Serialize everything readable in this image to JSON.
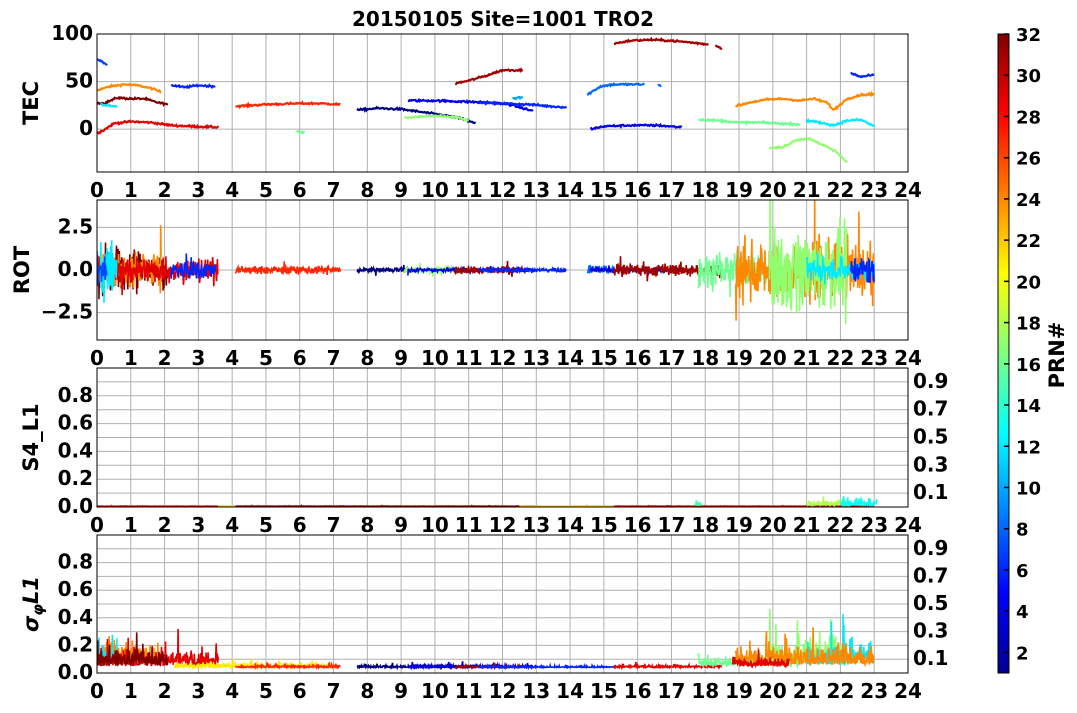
{
  "chart_data": {
    "type": "line",
    "title": "20150105 Site=1001 TRO2",
    "colorbar": {
      "label": "PRN#",
      "range": [
        1,
        32
      ],
      "ticks": [
        "2",
        "4",
        "6",
        "8",
        "10",
        "12",
        "14",
        "16",
        "18",
        "20",
        "22",
        "24",
        "26",
        "28",
        "30",
        "32"
      ],
      "colormap": "jet"
    },
    "xlim": [
      0,
      24
    ],
    "xticks": [
      "0",
      "1",
      "2",
      "3",
      "4",
      "5",
      "6",
      "7",
      "8",
      "9",
      "10",
      "11",
      "12",
      "13",
      "14",
      "15",
      "16",
      "17",
      "18",
      "19",
      "20",
      "21",
      "22",
      "23",
      "24"
    ],
    "grid": true,
    "panels": [
      {
        "ylabel": "TEC",
        "ylim": [
          -45,
          100
        ],
        "yticks": [
          {
            "v": 0,
            "label": "0"
          },
          {
            "v": 50,
            "label": "50"
          },
          {
            "v": 100,
            "label": "100"
          }
        ],
        "segments": [
          {
            "prn": 7,
            "x": [
              0,
              0.15,
              0.3
            ],
            "y": [
              73,
              71,
              67
            ]
          },
          {
            "prn": 24,
            "x": [
              0,
              0.4,
              0.8,
              1.2,
              1.6,
              1.9
            ],
            "y": [
              41,
              45,
              47,
              46,
              43,
              39
            ]
          },
          {
            "prn": 32,
            "x": [
              0,
              0.2,
              0.6,
              1.0,
              1.4,
              1.8,
              2.1
            ],
            "y": [
              28,
              27,
              33,
              32,
              32,
              28,
              26
            ]
          },
          {
            "prn": 12,
            "x": [
              0.1,
              0.35,
              0.6
            ],
            "y": [
              26,
              25,
              24
            ]
          },
          {
            "prn": 29,
            "x": [
              0,
              0.2,
              0.5,
              1.0,
              1.6,
              2.2,
              2.8,
              3.6
            ],
            "y": [
              -4,
              -1,
              6,
              8,
              7,
              4,
              3,
              2
            ]
          },
          {
            "prn": 6,
            "x": [
              2.2,
              2.6,
              3.0,
              3.5
            ],
            "y": [
              46,
              44,
              46,
              45
            ]
          },
          {
            "prn": 27,
            "x": [
              4.1,
              5.0,
              6.0,
              6.6,
              7.2
            ],
            "y": [
              24,
              26,
              27,
              27,
              26
            ]
          },
          {
            "prn": 16,
            "x": [
              5.9,
              6.15
            ],
            "y": [
              -3,
              -3
            ]
          },
          {
            "prn": 1,
            "x": [
              7.7,
              8.3,
              9.0,
              9.6,
              10.2,
              10.8,
              11.2
            ],
            "y": [
              20,
              22,
              21,
              18,
              15,
              11,
              6
            ]
          },
          {
            "prn": 17,
            "x": [
              9.1,
              9.6,
              10.2,
              10.7,
              11.0
            ],
            "y": [
              12,
              13,
              14,
              12,
              9
            ]
          },
          {
            "prn": 4,
            "x": [
              9.2,
              10.0,
              10.8,
              11.6,
              12.2,
              12.9
            ],
            "y": [
              30,
              30,
              29,
              28,
              26,
              19
            ]
          },
          {
            "prn": 31,
            "x": [
              10.6,
              11.0,
              11.5,
              12.0,
              12.6
            ],
            "y": [
              48,
              51,
              56,
              62,
              62
            ]
          },
          {
            "prn": 10,
            "x": [
              12.3,
              12.6
            ],
            "y": [
              33,
              33
            ]
          },
          {
            "prn": 6,
            "x": [
              11.3,
              12.0,
              12.8,
              13.4,
              13.9
            ],
            "y": [
              28,
              27,
              26,
              24,
              23
            ]
          },
          {
            "prn": 8,
            "x": [
              14.5,
              14.9,
              15.3,
              16.2
            ],
            "y": [
              36,
              45,
              47,
              47
            ]
          },
          {
            "prn": 8,
            "x": [
              16.6,
              16.7
            ],
            "y": [
              46,
              46
            ]
          },
          {
            "prn": 4,
            "x": [
              14.6,
              15.0,
              15.8,
              16.6,
              17.3
            ],
            "y": [
              0,
              3,
              4,
              4,
              2
            ]
          },
          {
            "prn": 31,
            "x": [
              15.3,
              15.8,
              16.4,
              17.0,
              17.6,
              18.1
            ],
            "y": [
              90,
              93,
              94,
              93,
              91,
              89
            ]
          },
          {
            "prn": 31,
            "x": [
              18.3,
              18.5
            ],
            "y": [
              88,
              85
            ]
          },
          {
            "prn": 16,
            "x": [
              17.8,
              18.4,
              19.0,
              19.6,
              20.2,
              20.8
            ],
            "y": [
              10,
              9,
              7,
              7,
              6,
              5
            ]
          },
          {
            "prn": 24,
            "x": [
              18.9,
              19.3,
              19.8,
              20.3,
              20.8,
              21.2,
              21.6,
              21.8,
              22.2,
              22.6,
              23.0
            ],
            "y": [
              24,
              28,
              31,
              32,
              30,
              32,
              28,
              20,
              32,
              36,
              37
            ]
          },
          {
            "prn": 17,
            "x": [
              19.9,
              20.3,
              20.7,
              21.1,
              21.5,
              21.9,
              22.2
            ],
            "y": [
              -20,
              -19,
              -11,
              -10,
              -17,
              -24,
              -35
            ]
          },
          {
            "prn": 12,
            "x": [
              21.0,
              21.4,
              21.8,
              22.2,
              22.6,
              23.0
            ],
            "y": [
              9,
              7,
              4,
              9,
              10,
              3
            ]
          },
          {
            "prn": 6,
            "x": [
              22.3,
              22.6,
              23.0
            ],
            "y": [
              59,
              55,
              57
            ]
          }
        ]
      },
      {
        "ylabel": "ROT",
        "ylim": [
          -4.1,
          4.1
        ],
        "yticks": [
          {
            "v": -2.5,
            "label": "−2.5"
          },
          {
            "v": 0,
            "label": "0.0"
          },
          {
            "v": 2.5,
            "label": "2.5"
          }
        ],
        "noise_segments": [
          {
            "prn": 32,
            "start": 0,
            "end": 2.1,
            "amp": 1.1
          },
          {
            "prn": 24,
            "start": 0,
            "end": 1.9,
            "amp": 0.9
          },
          {
            "prn": 29,
            "start": 0,
            "end": 3.6,
            "amp": 0.6
          },
          {
            "prn": 12,
            "start": 0.1,
            "end": 0.6,
            "amp": 1.4
          },
          {
            "prn": 7,
            "start": 0,
            "end": 0.3,
            "amp": 0.8
          },
          {
            "prn": 6,
            "start": 2.2,
            "end": 3.5,
            "amp": 0.45
          },
          {
            "prn": 27,
            "start": 4.1,
            "end": 7.2,
            "amp": 0.18
          },
          {
            "prn": 1,
            "start": 7.7,
            "end": 9.2,
            "amp": 0.1
          },
          {
            "prn": 17,
            "start": 9.1,
            "end": 11.0,
            "amp": 0.15
          },
          {
            "prn": 4,
            "start": 9.2,
            "end": 12.9,
            "amp": 0.1
          },
          {
            "prn": 31,
            "start": 10.6,
            "end": 12.6,
            "amp": 0.2
          },
          {
            "prn": 6,
            "start": 11.3,
            "end": 13.9,
            "amp": 0.08
          },
          {
            "prn": 8,
            "start": 14.5,
            "end": 15.3,
            "amp": 0.25
          },
          {
            "prn": 4,
            "start": 14.6,
            "end": 17.3,
            "amp": 0.08
          },
          {
            "prn": 31,
            "start": 15.3,
            "end": 18.5,
            "amp": 0.3
          },
          {
            "prn": 16,
            "start": 17.8,
            "end": 20.8,
            "amp": 0.8
          },
          {
            "prn": 24,
            "start": 18.9,
            "end": 23.0,
            "amp": 1.3
          },
          {
            "prn": 17,
            "start": 19.9,
            "end": 22.2,
            "amp": 1.9
          },
          {
            "prn": 12,
            "start": 21.0,
            "end": 23.0,
            "amp": 0.5
          },
          {
            "prn": 6,
            "start": 22.3,
            "end": 23.0,
            "amp": 0.7
          }
        ]
      },
      {
        "ylabel": "S4_L1",
        "ylim": [
          0,
          1
        ],
        "yticks": [
          {
            "v": 0,
            "label": "0.0"
          },
          {
            "v": 0.1,
            "label": "0.1"
          },
          {
            "v": 0.2,
            "label": "0.2"
          },
          {
            "v": 0.3,
            "label": "0.3"
          },
          {
            "v": 0.4,
            "label": "0.4"
          },
          {
            "v": 0.5,
            "label": "0.5"
          },
          {
            "v": 0.6,
            "label": "0.6"
          },
          {
            "v": 0.7,
            "label": "0.7"
          },
          {
            "v": 0.8,
            "label": "0.8"
          },
          {
            "v": 0.9,
            "label": "0.9"
          }
        ],
        "noise_segments": [
          {
            "prn": 29,
            "start": 0,
            "end": 3.6,
            "base": 0.005,
            "amp": 0.002
          },
          {
            "prn": 22,
            "start": 3.6,
            "end": 7.2,
            "base": 0.005,
            "amp": 0.002
          },
          {
            "prn": 31,
            "start": 4.1,
            "end": 13.0,
            "base": 0.005,
            "amp": 0.002
          },
          {
            "prn": 22,
            "start": 12.5,
            "end": 15.3,
            "base": 0.005,
            "amp": 0.002
          },
          {
            "prn": 29,
            "start": 15.3,
            "end": 23.0,
            "base": 0.005,
            "amp": 0.002
          },
          {
            "prn": 15,
            "start": 17.7,
            "end": 17.9,
            "base": 0.01,
            "amp": 0.04
          },
          {
            "prn": 18,
            "start": 21.0,
            "end": 22.3,
            "base": 0.01,
            "amp": 0.04
          },
          {
            "prn": 13,
            "start": 22.0,
            "end": 23.1,
            "base": 0.01,
            "amp": 0.05
          }
        ]
      },
      {
        "ylabel": "σ",
        "ylabel_sub": "φ",
        "ylabel_suffix": "L1",
        "ylim": [
          0,
          1
        ],
        "yticks": [
          {
            "v": 0,
            "label": "0.0"
          },
          {
            "v": 0.1,
            "label": "0.1"
          },
          {
            "v": 0.2,
            "label": "0.2"
          },
          {
            "v": 0.3,
            "label": "0.3"
          },
          {
            "v": 0.4,
            "label": "0.4"
          },
          {
            "v": 0.5,
            "label": "0.5"
          },
          {
            "v": 0.6,
            "label": "0.6"
          },
          {
            "v": 0.7,
            "label": "0.7"
          },
          {
            "v": 0.8,
            "label": "0.8"
          },
          {
            "v": 0.9,
            "label": "0.9"
          }
        ],
        "noise_segments": [
          {
            "prn": 24,
            "start": 0,
            "end": 1.9,
            "base": 0.06,
            "amp": 0.15
          },
          {
            "prn": 12,
            "start": 0,
            "end": 0.6,
            "base": 0.05,
            "amp": 0.15
          },
          {
            "prn": 29,
            "start": 0,
            "end": 3.6,
            "base": 0.05,
            "amp": 0.1
          },
          {
            "prn": 32,
            "start": 0,
            "end": 2.1,
            "base": 0.05,
            "amp": 0.12
          },
          {
            "prn": 21,
            "start": 2.3,
            "end": 7.0,
            "base": 0.04,
            "amp": 0.03
          },
          {
            "prn": 27,
            "start": 4.1,
            "end": 7.2,
            "base": 0.04,
            "amp": 0.015
          },
          {
            "prn": 1,
            "start": 7.7,
            "end": 11.2,
            "base": 0.04,
            "amp": 0.015
          },
          {
            "prn": 4,
            "start": 9.2,
            "end": 12.9,
            "base": 0.04,
            "amp": 0.02
          },
          {
            "prn": 31,
            "start": 10.6,
            "end": 12.6,
            "base": 0.04,
            "amp": 0.015
          },
          {
            "prn": 6,
            "start": 11.3,
            "end": 15.3,
            "base": 0.04,
            "amp": 0.01
          },
          {
            "prn": 29,
            "start": 15.3,
            "end": 18.5,
            "base": 0.04,
            "amp": 0.015
          },
          {
            "prn": 16,
            "start": 17.8,
            "end": 20.8,
            "base": 0.05,
            "amp": 0.07
          },
          {
            "prn": 17,
            "start": 19.9,
            "end": 22.2,
            "base": 0.06,
            "amp": 0.2
          },
          {
            "prn": 12,
            "start": 21.0,
            "end": 23.0,
            "base": 0.06,
            "amp": 0.15
          },
          {
            "prn": 24,
            "start": 18.9,
            "end": 23.0,
            "base": 0.06,
            "amp": 0.12
          },
          {
            "prn": 29,
            "start": 18.8,
            "end": 20.5,
            "base": 0.05,
            "amp": 0.06
          }
        ]
      }
    ]
  }
}
